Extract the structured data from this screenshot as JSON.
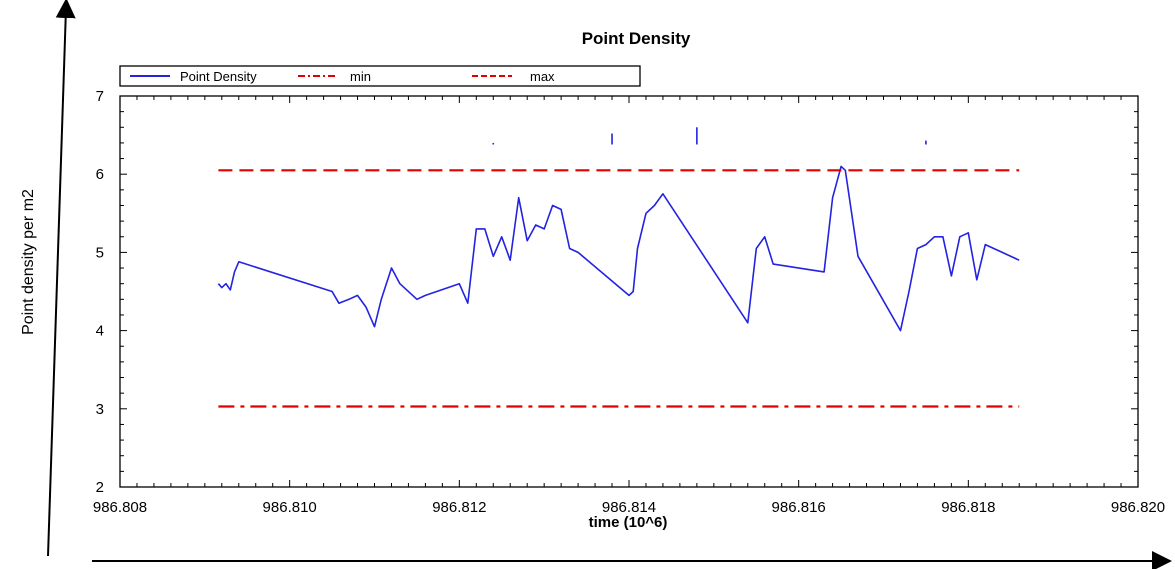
{
  "chart_data": {
    "type": "line",
    "title": "Point Density",
    "xlabel": "time (10^6)",
    "ylabel": "Point density per m2",
    "xlim": [
      986.808,
      986.82
    ],
    "ylim": [
      2,
      7
    ],
    "x_ticks": [
      "986.808",
      "986.810",
      "986.812",
      "986.814",
      "986.816",
      "986.818",
      "986.820"
    ],
    "y_ticks": [
      "2",
      "3",
      "4",
      "5",
      "6",
      "7"
    ],
    "grid": false,
    "legend_position": "top-left",
    "series": [
      {
        "name": "Point Density",
        "color": "#2323e0",
        "style": "solid",
        "x": [
          986.80916,
          986.8092,
          986.80925,
          986.8093,
          986.80935,
          986.8094,
          986.8105,
          986.81058,
          986.8107,
          986.8108,
          986.8109,
          986.811,
          986.81108,
          986.8112,
          986.8113,
          986.8115,
          986.8116,
          986.812,
          986.8121,
          986.8122,
          986.8123,
          986.8124,
          986.8125,
          986.8126,
          986.8127,
          986.8128,
          986.8129,
          986.813,
          986.8131,
          986.8132,
          986.8133,
          986.8134,
          986.814,
          986.81405,
          986.8141,
          986.8142,
          986.8143,
          986.8144,
          986.8154,
          986.8155,
          986.8156,
          986.8157,
          986.8163,
          986.8164,
          986.8165,
          986.81655,
          986.8167,
          986.8172,
          986.8173,
          986.8174,
          986.8175,
          986.8176,
          986.8177,
          986.8178,
          986.8179,
          986.818,
          986.8181,
          986.8182,
          986.8183,
          986.8184,
          986.8186
        ],
        "y": [
          4.6,
          4.55,
          4.6,
          4.52,
          4.75,
          4.88,
          4.5,
          4.35,
          4.4,
          4.45,
          4.3,
          4.05,
          4.4,
          4.8,
          4.6,
          4.4,
          4.45,
          4.6,
          4.35,
          5.3,
          5.3,
          4.95,
          5.2,
          4.9,
          5.7,
          5.15,
          5.35,
          5.3,
          5.6,
          5.55,
          5.05,
          5.0,
          4.45,
          4.5,
          5.05,
          5.5,
          5.6,
          5.75,
          4.1,
          5.05,
          5.2,
          4.85,
          4.75,
          5.7,
          6.1,
          6.05,
          4.95,
          4.0,
          4.5,
          5.05,
          5.1,
          5.2,
          5.2,
          4.7,
          5.2,
          5.25,
          4.65,
          5.1,
          5.05,
          5.0,
          4.9
        ]
      },
      {
        "name": "min",
        "color": "#e00000",
        "style": "dash-dot",
        "x": [
          986.80916,
          986.8186
        ],
        "y": [
          3.03,
          3.03
        ]
      },
      {
        "name": "max",
        "color": "#e00000",
        "style": "dashed",
        "x": [
          986.80916,
          986.8186
        ],
        "y": [
          6.05,
          6.05
        ]
      }
    ],
    "outlier_spikes": [
      {
        "x": 986.8124,
        "y_from": 6.38,
        "y_to": 6.4
      },
      {
        "x": 986.8138,
        "y_from": 6.38,
        "y_to": 6.52
      },
      {
        "x": 986.8148,
        "y_from": 6.38,
        "y_to": 6.6
      },
      {
        "x": 986.8175,
        "y_from": 6.38,
        "y_to": 6.43
      }
    ]
  }
}
